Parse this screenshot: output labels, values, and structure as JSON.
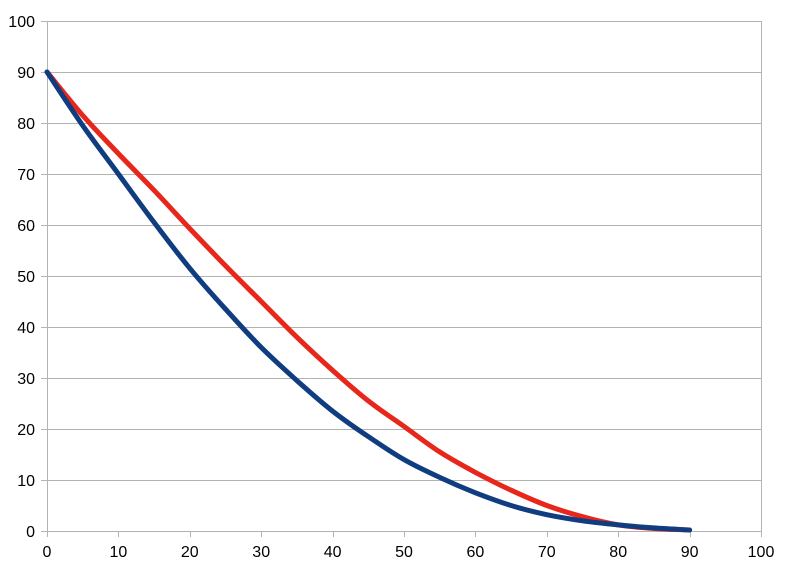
{
  "chart_data": {
    "type": "line",
    "title": "",
    "xlabel": "",
    "ylabel": "",
    "xlim": [
      0,
      100
    ],
    "ylim": [
      0,
      100
    ],
    "x_ticks": [
      0,
      10,
      20,
      30,
      40,
      50,
      60,
      70,
      80,
      90,
      100
    ],
    "y_ticks": [
      0,
      10,
      20,
      30,
      40,
      50,
      60,
      70,
      80,
      90,
      100
    ],
    "grid": "horizontal",
    "legend": "none",
    "series": [
      {
        "color": "#e8271c",
        "x": [
          0,
          5,
          10,
          15,
          20,
          25,
          30,
          35,
          40,
          45,
          50,
          55,
          60,
          65,
          70,
          75,
          80,
          85,
          90
        ],
        "y": [
          90,
          81.5,
          74,
          66.8,
          59.3,
          52,
          45,
          38,
          31.5,
          25.5,
          20.5,
          15.5,
          11.5,
          8,
          5,
          2.8,
          1.2,
          0.5,
          0.2
        ]
      },
      {
        "color": "#103c80",
        "x": [
          0,
          5,
          10,
          15,
          20,
          25,
          30,
          35,
          40,
          45,
          50,
          55,
          60,
          65,
          70,
          75,
          80,
          85,
          90
        ],
        "y": [
          90,
          79.5,
          70,
          60.5,
          51.5,
          43.5,
          36,
          29.5,
          23.5,
          18.5,
          14,
          10.5,
          7.5,
          5,
          3.2,
          2,
          1.2,
          0.6,
          0.2
        ]
      }
    ]
  }
}
